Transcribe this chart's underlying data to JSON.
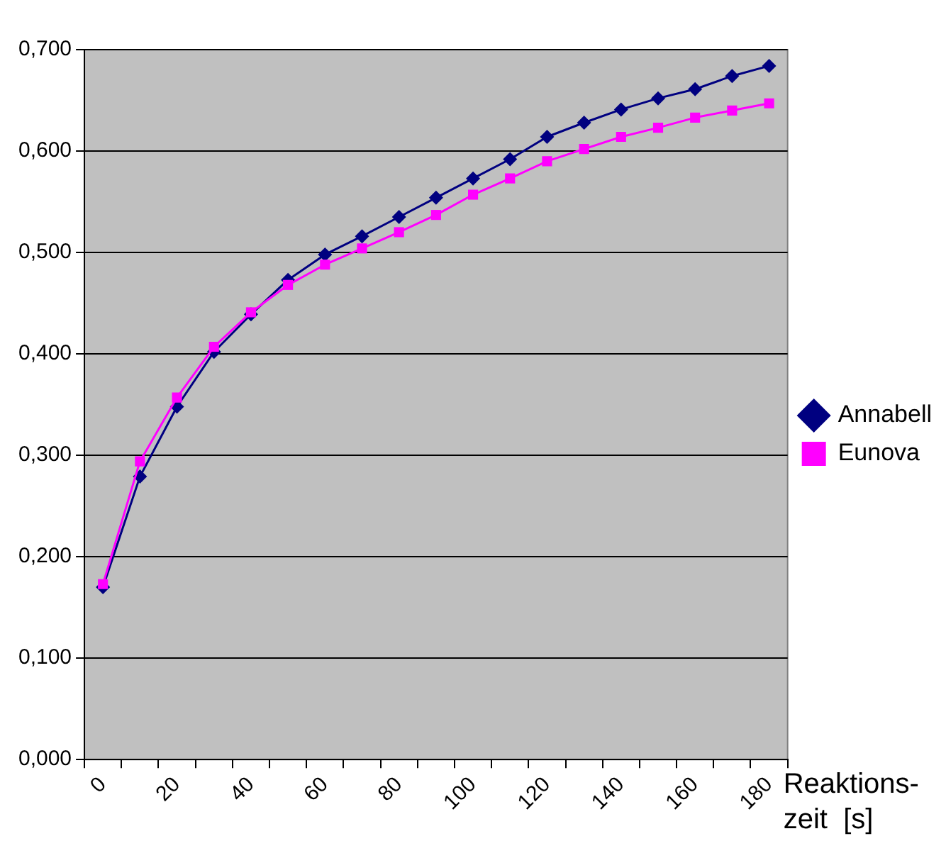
{
  "chart_data": {
    "type": "line",
    "xlabel": "Reaktions-\nzeit  [s]",
    "categories": [
      "0",
      null,
      "20",
      null,
      "40",
      null,
      "60",
      null,
      "80",
      null,
      "100",
      null,
      "120",
      null,
      "140",
      null,
      "160",
      null,
      "180"
    ],
    "series": [
      {
        "name": "Annabell",
        "color": "#000080",
        "marker": "diamond",
        "values": [
          0.17,
          0.279,
          0.348,
          0.402,
          0.439,
          0.473,
          0.498,
          0.516,
          0.535,
          0.554,
          0.573,
          0.592,
          0.614,
          0.628,
          0.641,
          0.652,
          0.661,
          0.674,
          0.684
        ]
      },
      {
        "name": "Eunova",
        "color": "#ff00ff",
        "marker": "square",
        "values": [
          0.173,
          0.294,
          0.357,
          0.407,
          0.441,
          0.468,
          0.488,
          0.504,
          0.52,
          0.537,
          0.557,
          0.573,
          0.59,
          0.602,
          0.614,
          0.623,
          0.633,
          0.64,
          0.647
        ]
      }
    ],
    "ylim": [
      0,
      0.7
    ],
    "yticks": [
      {
        "value": 0,
        "label": "0,000"
      },
      {
        "value": 0.1,
        "label": "0,100"
      },
      {
        "value": 0.2,
        "label": "0,200"
      },
      {
        "value": 0.3,
        "label": "0,300"
      },
      {
        "value": 0.4,
        "label": "0,400"
      },
      {
        "value": 0.5,
        "label": "0,500"
      },
      {
        "value": 0.6,
        "label": "0,600"
      },
      {
        "value": 0.7,
        "label": "0,700"
      }
    ],
    "grid": "y",
    "legend": "right",
    "line_style": "solid"
  }
}
